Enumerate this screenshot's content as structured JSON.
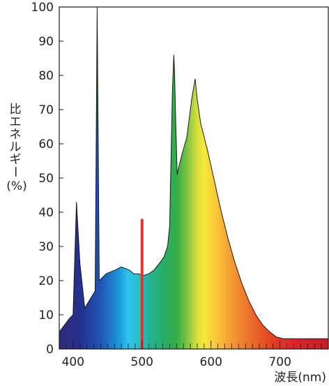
{
  "chart_data": {
    "type": "area",
    "ylabel_chars": [
      "比",
      "エ",
      "ネ",
      "ル",
      "ギ",
      "ー"
    ],
    "ylabel_unit": "(%)",
    "xlabel": "波長(nm)",
    "xlim": [
      380,
      770
    ],
    "ylim": [
      0,
      100
    ],
    "x_ticks": [
      400,
      500,
      600,
      700
    ],
    "y_ticks": [
      0,
      10,
      20,
      30,
      40,
      50,
      60,
      70,
      80,
      90,
      100
    ],
    "grid": false,
    "series": [
      {
        "x": [
          380,
          395,
          400,
          405,
          410,
          417,
          432,
          435,
          438,
          448,
          460,
          470,
          477,
          482,
          488,
          495,
          502,
          510,
          517,
          525,
          532,
          537,
          540,
          542,
          544,
          546,
          547,
          549,
          551,
          553,
          558,
          565,
          572,
          577,
          580,
          585,
          595,
          605,
          615,
          625,
          635,
          645,
          655,
          665,
          675,
          685,
          695,
          705,
          715,
          730,
          750,
          770
        ],
        "values": [
          5,
          9,
          10,
          43,
          25,
          12,
          17,
          100,
          20,
          22,
          23,
          24,
          23.5,
          23,
          22,
          22,
          21.5,
          22,
          23,
          25,
          27,
          30,
          36,
          55,
          75,
          86,
          82,
          65,
          51,
          53,
          57,
          62,
          73,
          79,
          73,
          66,
          58,
          49,
          40,
          32,
          25,
          19,
          14,
          10,
          7,
          5,
          3.5,
          3,
          3,
          3,
          3,
          3
        ]
      },
      {
        "type": "line",
        "x": [
          500,
          500
        ],
        "values": [
          0,
          38
        ],
        "color": "#e8322f"
      }
    ]
  }
}
